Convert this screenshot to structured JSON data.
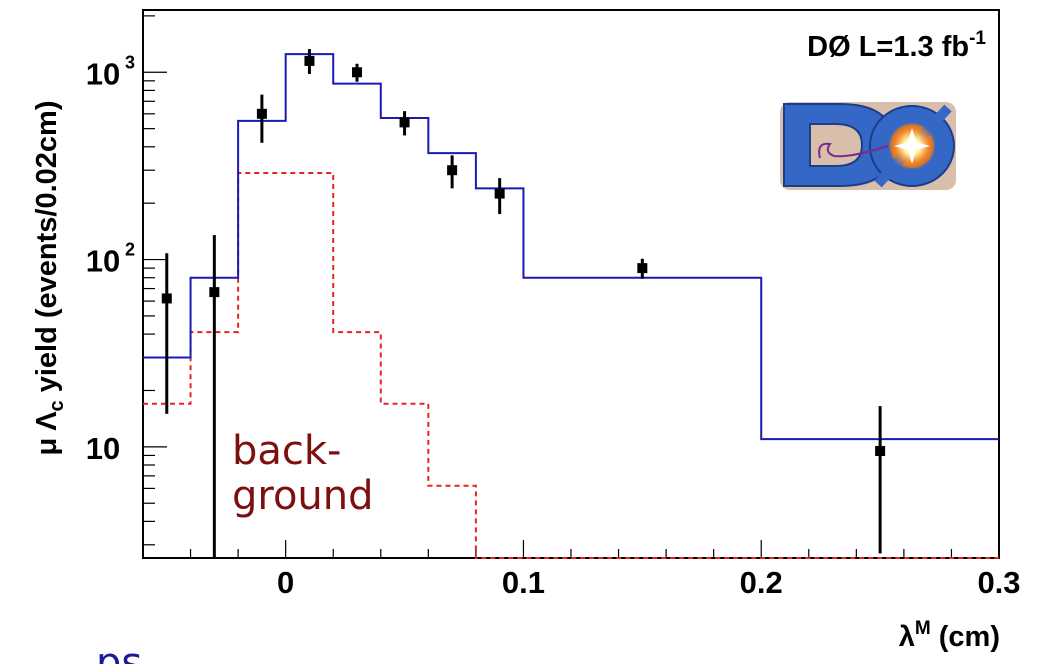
{
  "chart_data": {
    "type": "line",
    "x_axis": {
      "label_base": "λ",
      "label_sup": "M",
      "label_unit": " (cm)",
      "range": [
        -0.06,
        0.3
      ],
      "tick_labels": [
        {
          "value": 0,
          "label": "0"
        },
        {
          "value": 0.1,
          "label": "0.1"
        },
        {
          "value": 0.2,
          "label": "0.2"
        },
        {
          "value": 0.3,
          "label": "0.3"
        }
      ]
    },
    "y_axis": {
      "label_prefix": "μ Λ",
      "label_sub": "c",
      "label_suffix": " yield (events/0.02cm)",
      "scale": "log",
      "range": [
        2.55,
        2150
      ],
      "tick_labels": [
        {
          "value": 10,
          "label": "10",
          "exp": ""
        },
        {
          "value": 100,
          "label": "10",
          "exp": "2"
        },
        {
          "value": 1000,
          "label": "10",
          "exp": "3"
        }
      ]
    },
    "annotation": {
      "text": "DØ L=1.3 fb",
      "sup": "-1"
    },
    "background_label": {
      "line1": "back-",
      "line2": "ground"
    },
    "stray_text": "ps",
    "series": [
      {
        "style": "histogram",
        "color": "#1a1ab4",
        "bins": [
          {
            "x1": -0.06,
            "x2": -0.04,
            "y": 30
          },
          {
            "x1": -0.04,
            "x2": -0.02,
            "y": 80
          },
          {
            "x1": -0.02,
            "x2": 0.0,
            "y": 550
          },
          {
            "x1": 0.0,
            "x2": 0.02,
            "y": 1250
          },
          {
            "x1": 0.02,
            "x2": 0.04,
            "y": 870
          },
          {
            "x1": 0.04,
            "x2": 0.06,
            "y": 570
          },
          {
            "x1": 0.06,
            "x2": 0.08,
            "y": 370
          },
          {
            "x1": 0.08,
            "x2": 0.1,
            "y": 240
          },
          {
            "x1": 0.1,
            "x2": 0.2,
            "y": 80
          },
          {
            "x1": 0.2,
            "x2": 0.3,
            "y": 11
          }
        ]
      },
      {
        "style": "histogram-dashed",
        "color": "#e8241c",
        "bins": [
          {
            "x1": -0.06,
            "x2": -0.04,
            "y": 17
          },
          {
            "x1": -0.04,
            "x2": -0.02,
            "y": 41
          },
          {
            "x1": -0.02,
            "x2": 0.0,
            "y": 290
          },
          {
            "x1": 0.0,
            "x2": 0.02,
            "y": 290
          },
          {
            "x1": 0.02,
            "x2": 0.04,
            "y": 41
          },
          {
            "x1": 0.04,
            "x2": 0.06,
            "y": 17
          },
          {
            "x1": 0.06,
            "x2": 0.08,
            "y": 6.2
          },
          {
            "x1": 0.08,
            "x2": 0.3,
            "y": 2.55
          }
        ]
      },
      {
        "style": "points",
        "color": "#000000",
        "points": [
          {
            "x": -0.05,
            "y": 62,
            "lo": 15,
            "hi": 108
          },
          {
            "x": -0.03,
            "y": 67,
            "lo": 2.55,
            "hi": 135
          },
          {
            "x": -0.01,
            "y": 600,
            "lo": 420,
            "hi": 760
          },
          {
            "x": 0.01,
            "y": 1150,
            "lo": 980,
            "hi": 1330
          },
          {
            "x": 0.03,
            "y": 1000,
            "lo": 890,
            "hi": 1110
          },
          {
            "x": 0.05,
            "y": 540,
            "lo": 460,
            "hi": 620
          },
          {
            "x": 0.07,
            "y": 300,
            "lo": 240,
            "hi": 360
          },
          {
            "x": 0.09,
            "y": 225,
            "lo": 175,
            "hi": 272
          },
          {
            "x": 0.15,
            "y": 90,
            "lo": 79,
            "hi": 101
          },
          {
            "x": 0.25,
            "y": 9.5,
            "lo": 2.7,
            "hi": 16.5
          }
        ]
      }
    ],
    "colors": {
      "signal": "#1a1ab4",
      "background": "#e8241c",
      "background_label": "#7d0f0f",
      "stray_text": "#1a1a9a"
    },
    "logo": {
      "text": "DØ",
      "fill": "#2f5fbf"
    }
  }
}
